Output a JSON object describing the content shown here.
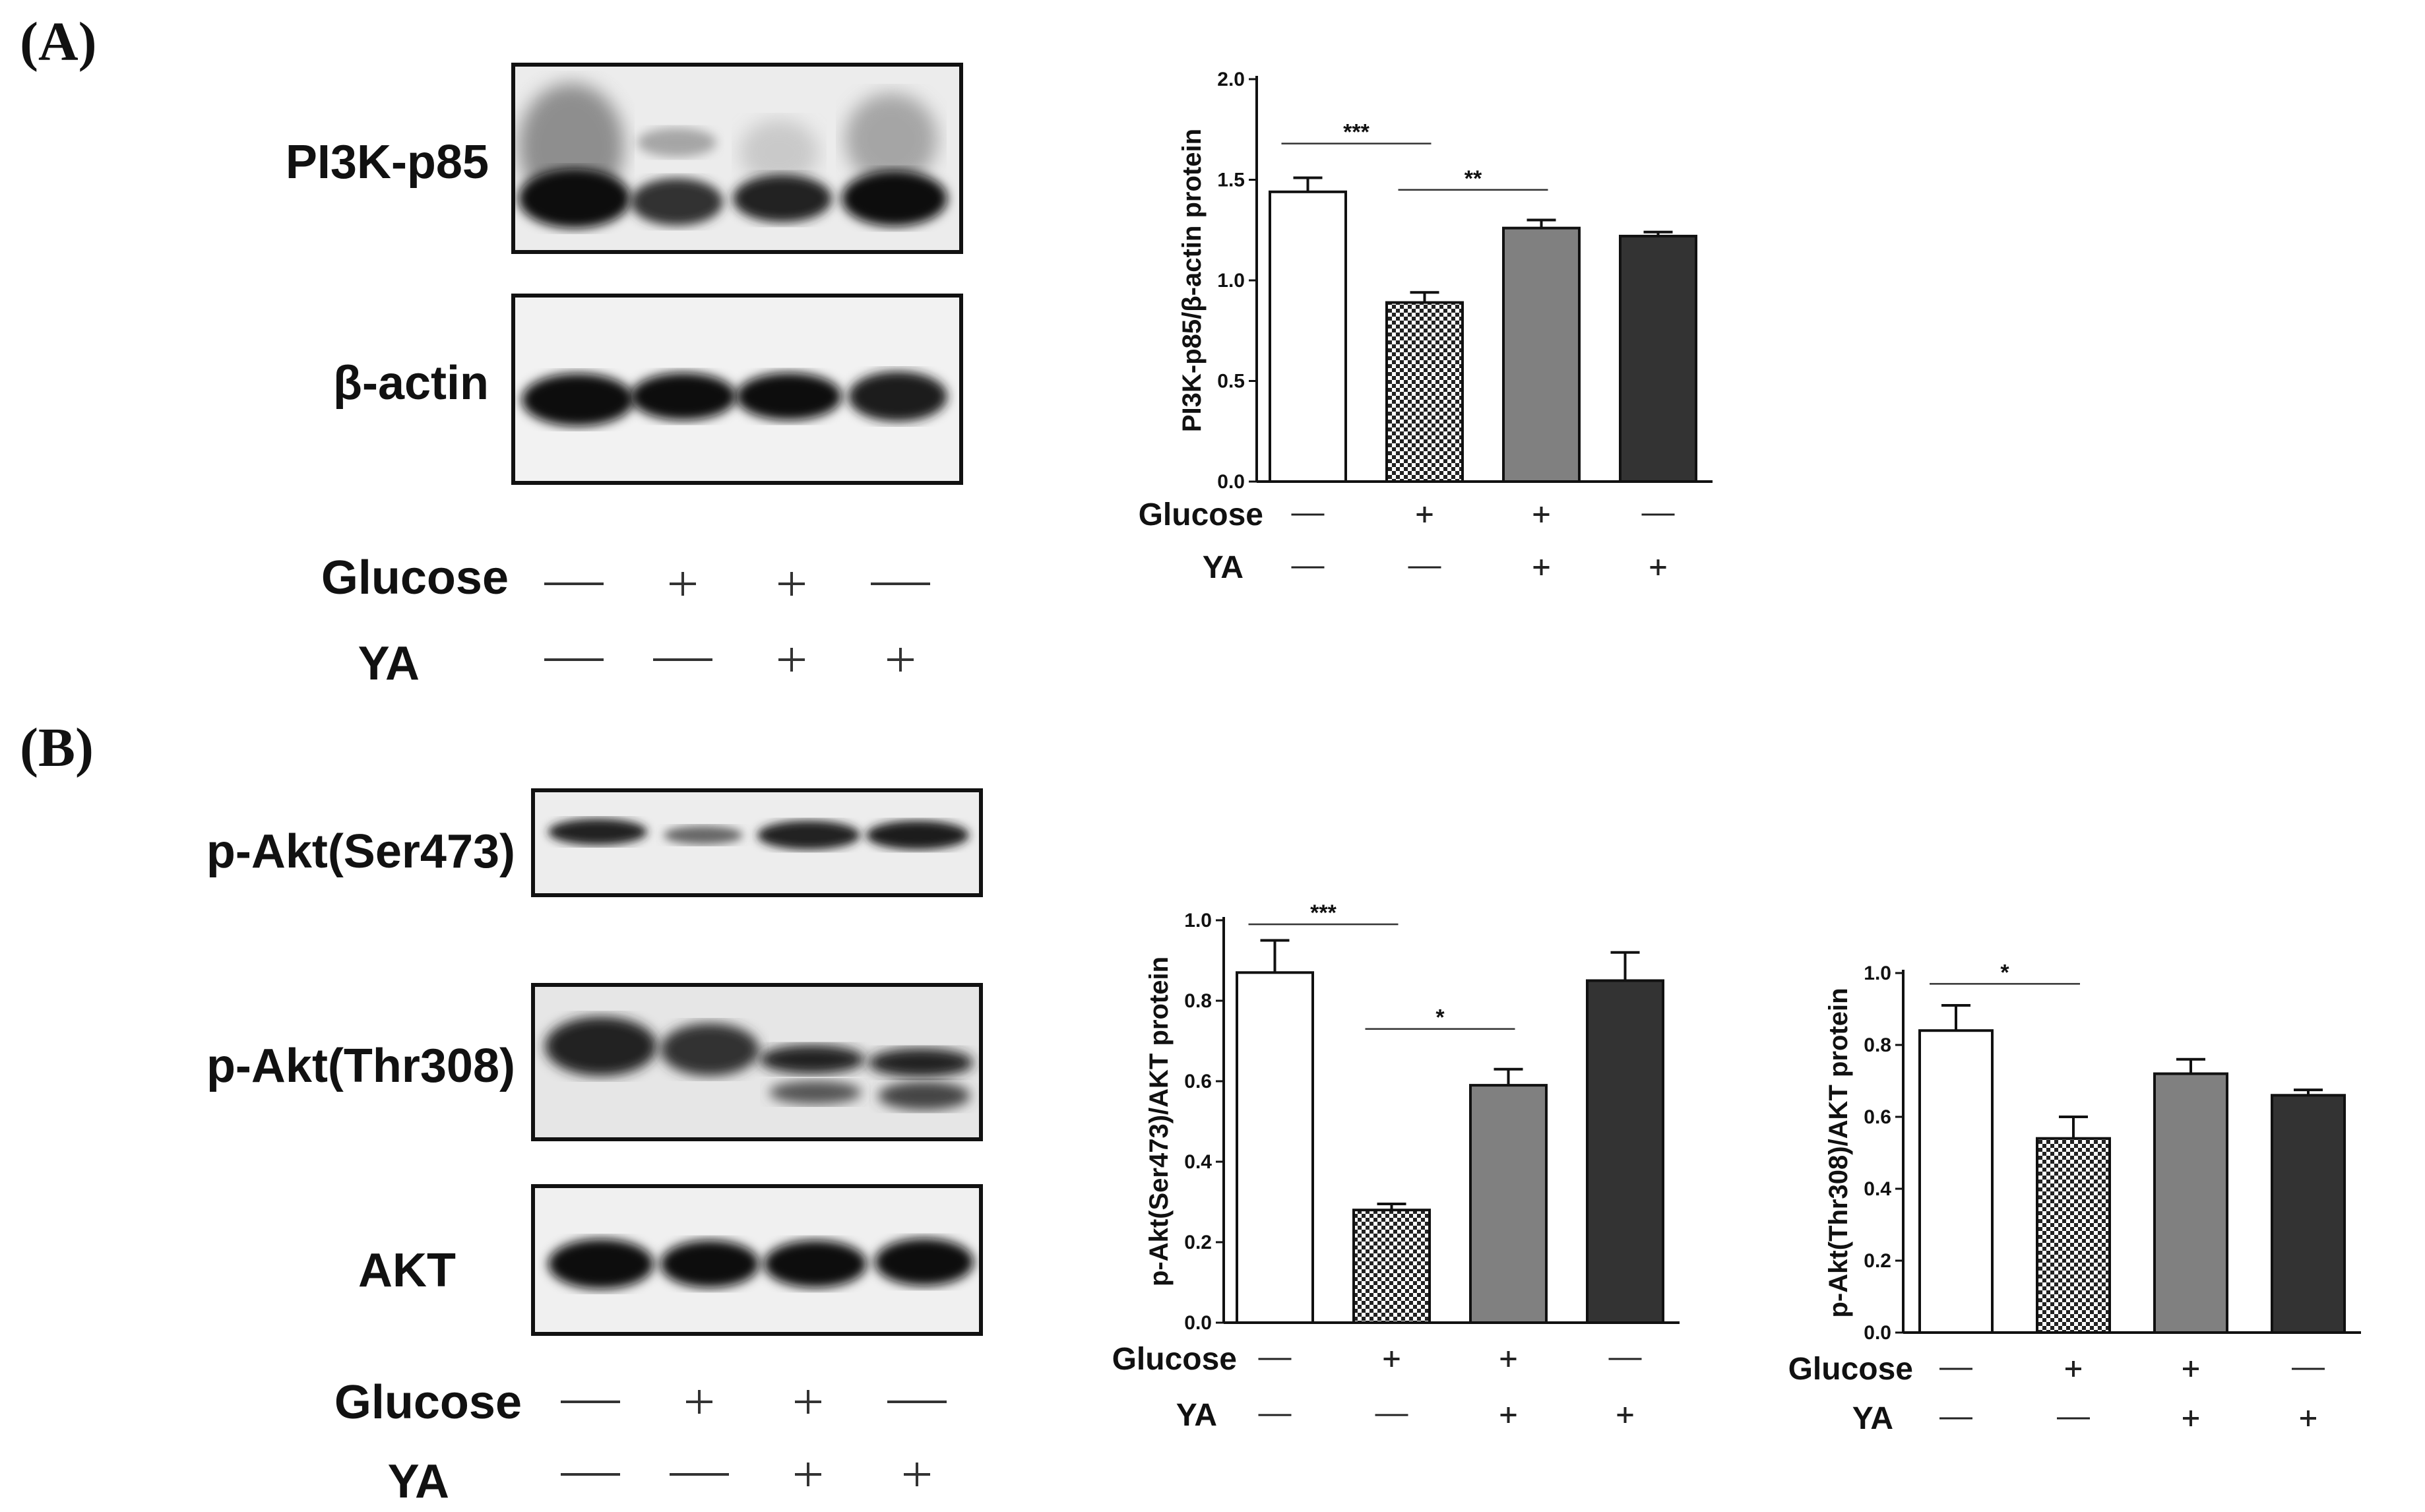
{
  "panels": {
    "a": {
      "label": "(A)",
      "blots": [
        {
          "name": "PI3K-p85"
        },
        {
          "name": "β-actin"
        }
      ],
      "conditions": [
        {
          "name": "Glucose",
          "signs": [
            "—",
            "+",
            "+",
            "—"
          ]
        },
        {
          "name": "YA",
          "signs": [
            "—",
            "—",
            "+",
            "+"
          ]
        }
      ]
    },
    "b": {
      "label": "(B)",
      "blots": [
        {
          "name": "p-Akt(Ser473)"
        },
        {
          "name": "p-Akt(Thr308)"
        },
        {
          "name": "AKT"
        }
      ],
      "conditions": [
        {
          "name": "Glucose",
          "signs": [
            "—",
            "+",
            "+",
            "—"
          ]
        },
        {
          "name": "YA",
          "signs": [
            "—",
            "—",
            "+",
            "+"
          ]
        }
      ]
    }
  },
  "colors": {
    "bar_fills": [
      "#ffffff",
      "checkered",
      "#808080",
      "#333333"
    ],
    "axis": "#111111"
  },
  "chart_data": [
    {
      "type": "bar",
      "panel": "(A)",
      "ylabel": "PI3K-p85/β-actin protein",
      "ylim": [
        0,
        2.0
      ],
      "yticks": [
        "0.0",
        "0.5",
        "1.0",
        "1.5",
        "2.0"
      ],
      "values": [
        1.44,
        0.89,
        1.26,
        1.22
      ],
      "errors": [
        0.07,
        0.05,
        0.04,
        0.02
      ],
      "conditions": [
        {
          "name": "Glucose",
          "signs": [
            "—",
            "+",
            "+",
            "—"
          ]
        },
        {
          "name": "YA",
          "signs": [
            "—",
            "—",
            "+",
            "+"
          ]
        }
      ],
      "significance": [
        {
          "from": 0,
          "to": 1,
          "label": "***",
          "y": 1.68
        },
        {
          "from": 1,
          "to": 2,
          "label": "**",
          "y": 1.45
        }
      ]
    },
    {
      "type": "bar",
      "panel": "(B)",
      "ylabel": "p-Akt(Ser473)/AKT protein",
      "ylim": [
        0,
        1.0
      ],
      "yticks": [
        "0.0",
        "0.2",
        "0.4",
        "0.6",
        "0.8",
        "1.0"
      ],
      "values": [
        0.87,
        0.28,
        0.59,
        0.85
      ],
      "errors": [
        0.08,
        0.015,
        0.04,
        0.07
      ],
      "conditions": [
        {
          "name": "Glucose",
          "signs": [
            "—",
            "+",
            "+",
            "—"
          ]
        },
        {
          "name": "YA",
          "signs": [
            "—",
            "—",
            "+",
            "+"
          ]
        }
      ],
      "significance": [
        {
          "from": 0,
          "to": 1,
          "label": "***",
          "y": 0.99
        },
        {
          "from": 1,
          "to": 2,
          "label": "*",
          "y": 0.73
        }
      ]
    },
    {
      "type": "bar",
      "panel": "(B)",
      "ylabel": "p-Akt(Thr308)/AKT protein",
      "ylim": [
        0,
        1.0
      ],
      "yticks": [
        "0.0",
        "0.2",
        "0.4",
        "0.6",
        "0.8",
        "1.0"
      ],
      "values": [
        0.84,
        0.54,
        0.72,
        0.66
      ],
      "errors": [
        0.07,
        0.06,
        0.04,
        0.015
      ],
      "conditions": [
        {
          "name": "Glucose",
          "signs": [
            "—",
            "+",
            "+",
            "—"
          ]
        },
        {
          "name": "YA",
          "signs": [
            "—",
            "—",
            "+",
            "+"
          ]
        }
      ],
      "significance": [
        {
          "from": 0,
          "to": 1,
          "label": "*",
          "y": 0.97
        }
      ]
    }
  ]
}
